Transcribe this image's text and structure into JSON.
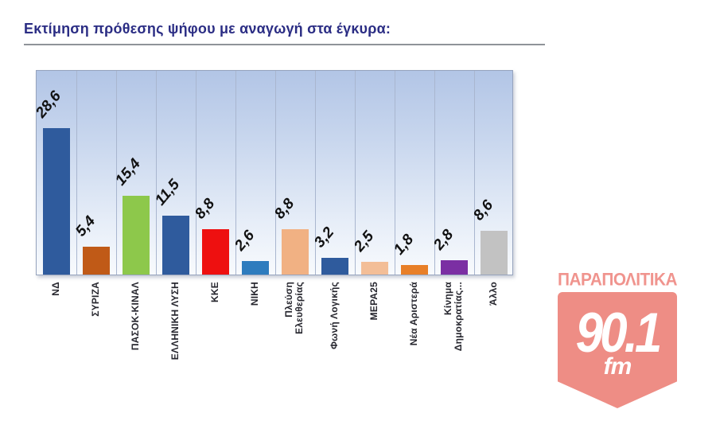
{
  "title": "Εκτίμηση πρόθεσης ψήφου με αναγωγή στα έγκυρα:",
  "chart_data": {
    "type": "bar",
    "title": "Εκτίμηση πρόθεσης ψήφου με αναγωγή στα έγκυρα:",
    "categories": [
      "ΝΔ",
      "ΣΥΡΙΖΑ",
      "ΠΑΣΟΚ-ΚΙΝΑΛ",
      "ΕΛΛΗΝΙΚΗ ΛΥΣΗ",
      "ΚΚΕ",
      "ΝΙΚΗ",
      "Πλεύση\nΕλευθερίας",
      "Φωνή Λογικής",
      "ΜΕΡΑ25",
      "Νέα Αριστερά",
      "Κίνημα\nΔημοκρατίας...",
      "Άλλο"
    ],
    "values": [
      28.6,
      5.4,
      15.4,
      11.5,
      8.8,
      2.6,
      8.8,
      3.2,
      2.5,
      1.8,
      2.8,
      8.6
    ],
    "value_labels": [
      "28,6",
      "5,4",
      "15,4",
      "11,5",
      "8,8",
      "2,6",
      "8,8",
      "3,2",
      "2,5",
      "1,8",
      "2,8",
      "8,6"
    ],
    "bar_colors": [
      "#2F5B9D",
      "#C05A17",
      "#8DC84B",
      "#2F5B9D",
      "#EE1010",
      "#2E7CBE",
      "#F1B183",
      "#2F5B9D",
      "#F3BE97",
      "#E87F28",
      "#7B2FA3",
      "#C2C2C2"
    ],
    "xlabel": "",
    "ylabel": "",
    "ylim": [
      0,
      40
    ],
    "grid": "vertical-only",
    "legend": false,
    "plot_background": [
      "#b2c5e6",
      "#f8fafd"
    ],
    "value_label_style": "bold italic rotated",
    "category_label_style": "bold vertical"
  },
  "logo": {
    "station": "ΠΑΡΑΠΟΛΙΤΙΚΑ",
    "frequency": "90.1",
    "band": "fm",
    "badge_color": "#ee8d85",
    "text_color": "#f0948e"
  }
}
